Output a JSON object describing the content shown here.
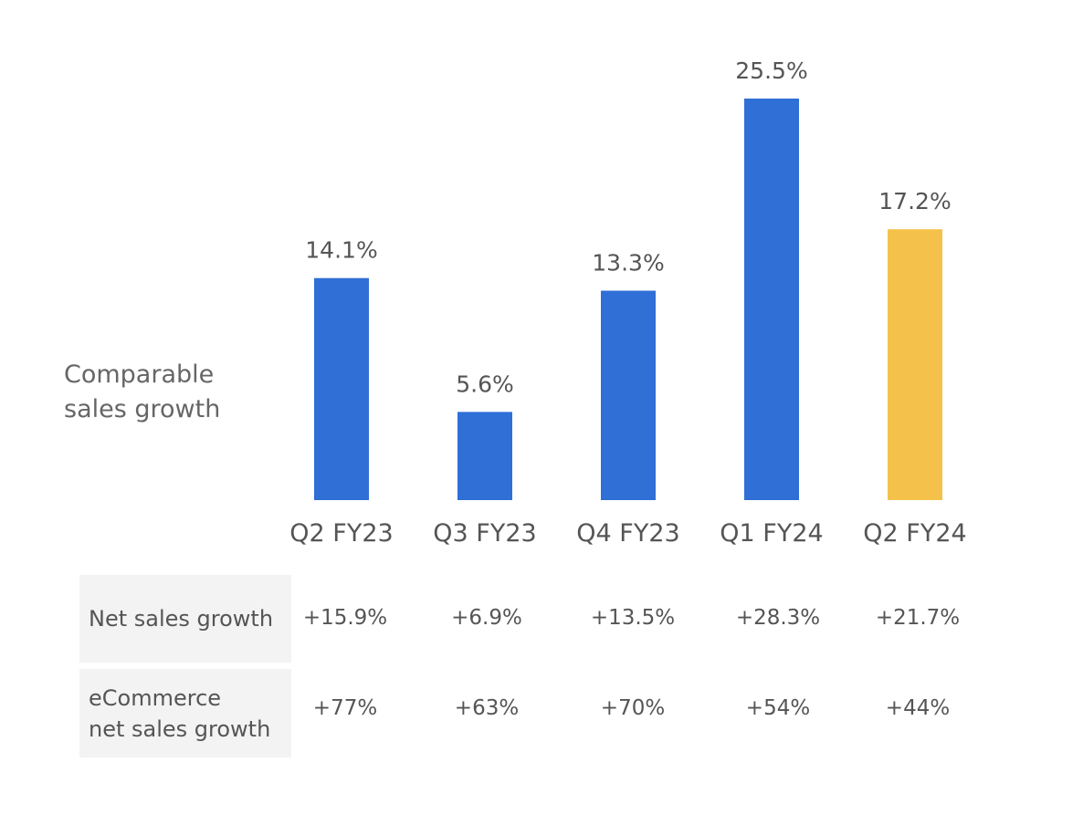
{
  "series_label": {
    "line1": "Comparable",
    "line2": "sales growth"
  },
  "colors": {
    "bar": "#2f6fd6",
    "highlight": "#f4c24a",
    "text": "#555555",
    "row_bg": "#f3f3f3"
  },
  "chart_data": {
    "type": "bar",
    "title": "",
    "ylabel": "Comparable sales growth",
    "categories": [
      "Q2 FY23",
      "Q3 FY23",
      "Q4 FY23",
      "Q1 FY24",
      "Q2 FY24"
    ],
    "values": [
      14.1,
      5.6,
      13.3,
      25.5,
      17.2
    ],
    "value_labels": [
      "14.1%",
      "5.6%",
      "13.3%",
      "25.5%",
      "17.2%"
    ],
    "highlight_index": 4,
    "ylim": [
      0,
      25.5
    ]
  },
  "table": {
    "rows": [
      {
        "label_lines": [
          "Net sales growth"
        ],
        "values": [
          "+15.9%",
          "+6.9%",
          "+13.5%",
          "+28.3%",
          "+21.7%"
        ]
      },
      {
        "label_lines": [
          "eCommerce",
          "net sales growth"
        ],
        "values": [
          "+77%",
          "+63%",
          "+70%",
          "+54%",
          "+44%"
        ]
      }
    ]
  }
}
